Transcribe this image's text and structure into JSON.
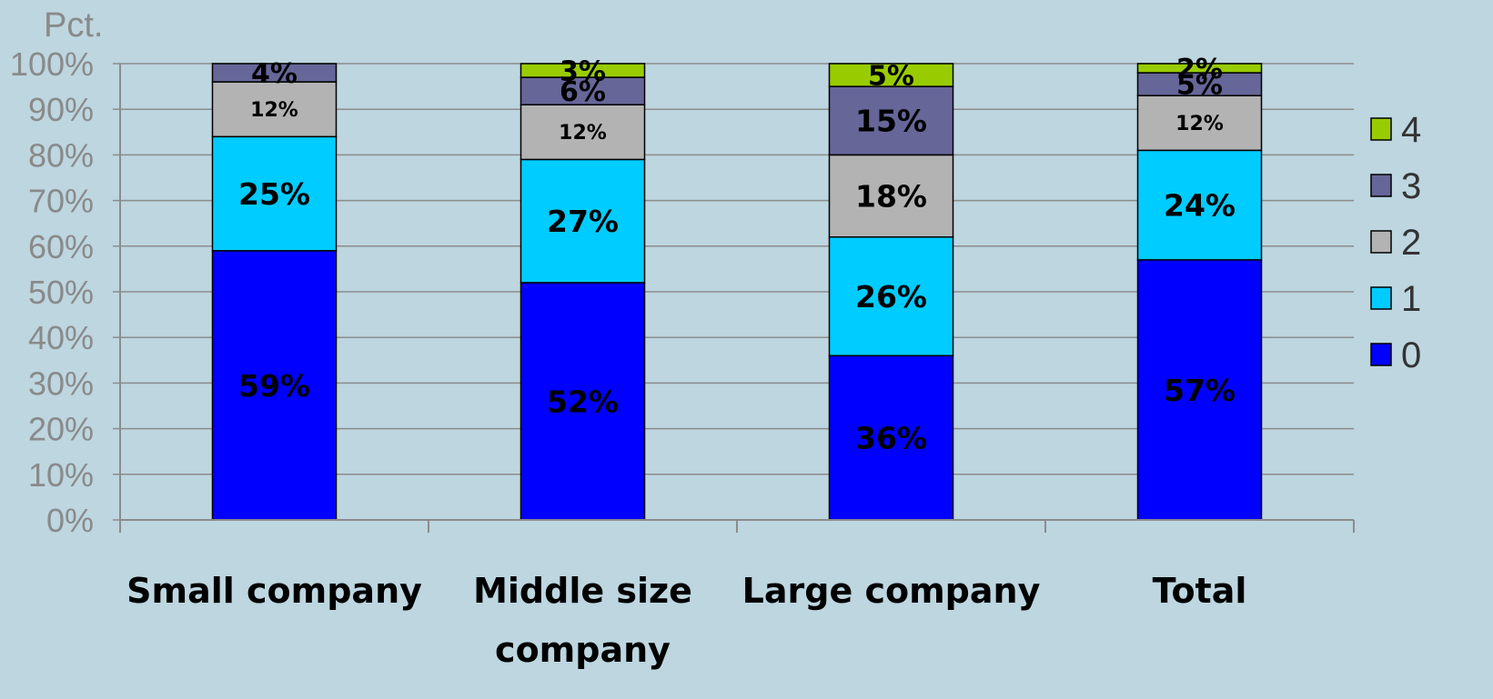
{
  "chart_data": {
    "type": "bar",
    "stacked": true,
    "ylabel": "Pct.",
    "ylim": [
      0,
      100
    ],
    "yticks": [
      "0%",
      "10%",
      "20%",
      "30%",
      "40%",
      "50%",
      "60%",
      "70%",
      "80%",
      "90%",
      "100%"
    ],
    "grid": true,
    "legend_position": "right",
    "categories": [
      [
        "Small company"
      ],
      [
        "Middle size",
        "company"
      ],
      [
        "Large company"
      ],
      [
        "Total"
      ]
    ],
    "series": [
      {
        "name": "0",
        "color": "#0000ff",
        "values": [
          59,
          52,
          36,
          57
        ],
        "labels": [
          "59%",
          "52%",
          "36%",
          "57%"
        ]
      },
      {
        "name": "1",
        "color": "#00ccff",
        "values": [
          25,
          27,
          26,
          24
        ],
        "labels": [
          "25%",
          "27%",
          "26%",
          "24%"
        ]
      },
      {
        "name": "2",
        "color": "#b3b3b3",
        "values": [
          12,
          12,
          18,
          12
        ],
        "labels": [
          "12%",
          "12%",
          "18%",
          "12%"
        ]
      },
      {
        "name": "3",
        "color": "#666699",
        "values": [
          4,
          6,
          15,
          5
        ],
        "labels": [
          "4%",
          "6%",
          "15%",
          "5%"
        ]
      },
      {
        "name": "4",
        "color": "#99cc00",
        "values": [
          0,
          3,
          5,
          2
        ],
        "labels": [
          "",
          "3%",
          "5%",
          "2%"
        ]
      }
    ]
  }
}
